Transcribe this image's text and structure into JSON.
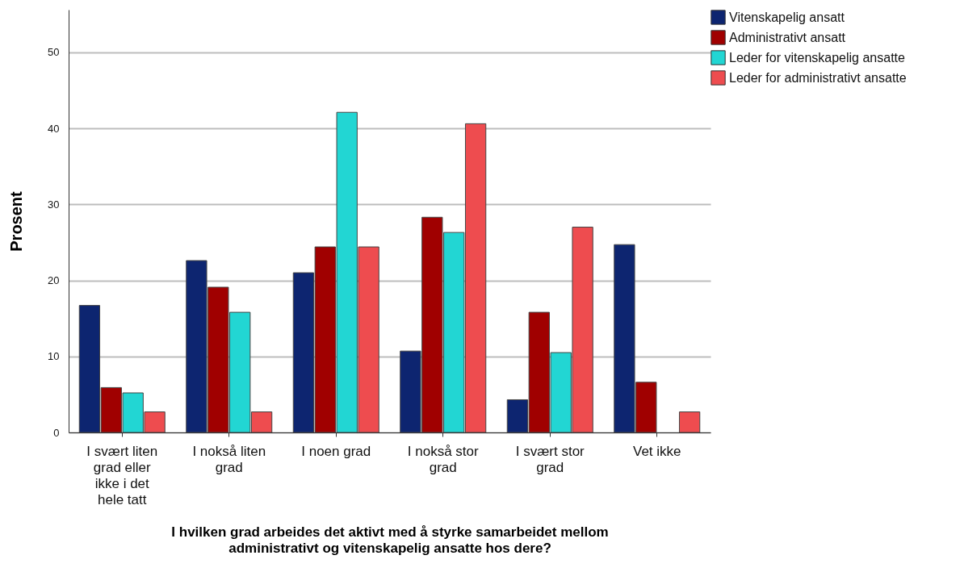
{
  "chart_data": {
    "type": "bar",
    "xlabel": "I hvilken grad arbeides det aktivt med å styrke samarbeidet mellom administrativt og vitenskapelig ansatte hos dere?",
    "ylabel": "Prosent",
    "categories": [
      "I svært liten grad eller ikke i det hele tatt",
      "I nokså liten grad",
      "I noen grad",
      "I nokså stor grad",
      "I svært stor grad",
      "Vet ikke"
    ],
    "series": [
      {
        "name": "Vitenskapelig ansatt",
        "color": "#0d2570",
        "values": [
          16.7,
          22.6,
          21.0,
          10.7,
          4.3,
          24.7
        ]
      },
      {
        "name": "Administrativt ansatt",
        "color": "#a00000",
        "values": [
          5.9,
          19.1,
          24.4,
          28.3,
          15.8,
          6.6
        ]
      },
      {
        "name": "Leder for vitenskapelig ansatte",
        "color": "#22d6d3",
        "values": [
          5.2,
          15.8,
          42.1,
          26.3,
          10.5,
          null
        ]
      },
      {
        "name": "Leder for administrativt ansatte",
        "color": "#ee4c4f",
        "values": [
          2.7,
          2.7,
          24.4,
          40.6,
          27.0,
          2.7
        ]
      }
    ],
    "ylim": [
      0,
      55.6
    ],
    "yticks": [
      0,
      10,
      20,
      30,
      40,
      50
    ],
    "grid": "y",
    "legend": "top right"
  }
}
